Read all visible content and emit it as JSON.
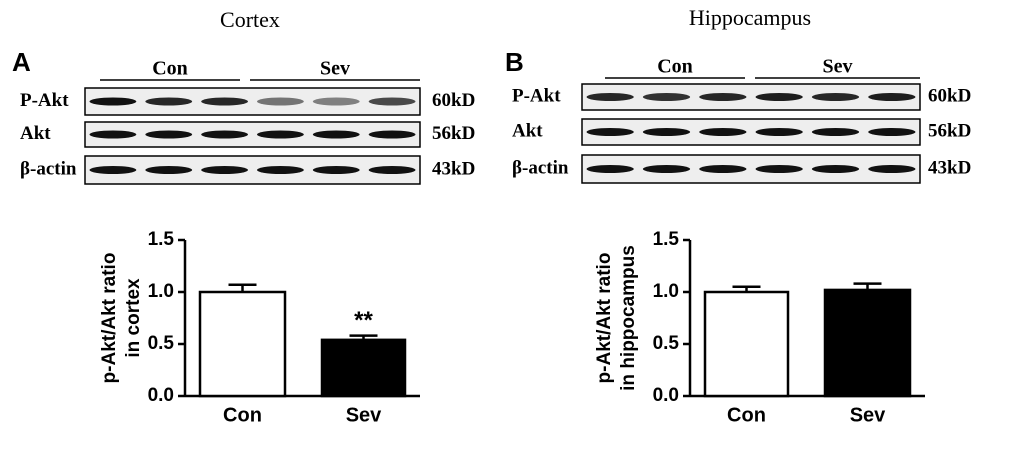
{
  "chart_data": [
    {
      "type": "bar",
      "panel_label": "A",
      "panel_title": "Cortex",
      "blot": {
        "groups": [
          "Con",
          "Sev"
        ],
        "rows": [
          {
            "label": "P-Akt",
            "size": "60kD"
          },
          {
            "label": "Akt",
            "size": "56kD"
          },
          {
            "label": "β-actin",
            "size": "43kD"
          }
        ]
      },
      "ylabel": [
        "p-Akt/Akt ratio",
        "in cortex"
      ],
      "categories": [
        "Con",
        "Sev"
      ],
      "values": [
        1.0,
        0.54
      ],
      "errors": [
        0.07,
        0.04
      ],
      "value_annotations": [
        null,
        "**"
      ],
      "colors": [
        "#ffffff",
        "#000000"
      ],
      "ylim": [
        0,
        1.5
      ],
      "yticks": [
        {
          "value": 0,
          "label": "0.0"
        },
        0.5,
        {
          "value": 1,
          "label": "1.0"
        },
        1.5
      ]
    },
    {
      "type": "bar",
      "panel_label": "B",
      "panel_title": "Hippocampus",
      "blot": {
        "groups": [
          "Con",
          "Sev"
        ],
        "rows": [
          {
            "label": "P-Akt",
            "size": "60kD"
          },
          {
            "label": "Akt",
            "size": "56kD"
          },
          {
            "label": "β-actin",
            "size": "43kD"
          }
        ]
      },
      "ylabel": [
        "p-Akt/Akt ratio",
        "in hippocampus"
      ],
      "categories": [
        "Con",
        "Sev"
      ],
      "values": [
        1.0,
        1.02
      ],
      "errors": [
        0.05,
        0.06
      ],
      "colors": [
        "#ffffff",
        "#000000"
      ],
      "ylim": [
        0,
        1.5
      ],
      "yticks": [
        {
          "value": 0,
          "label": "0.0"
        },
        0.5,
        {
          "value": 1,
          "label": "1.0"
        },
        1.5
      ]
    }
  ]
}
